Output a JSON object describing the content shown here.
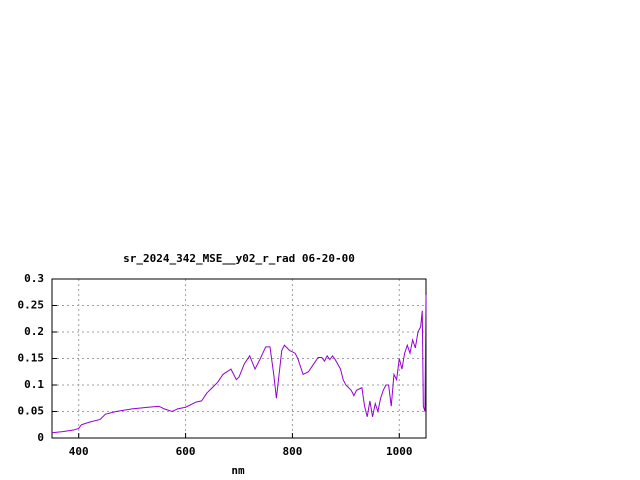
{
  "chart_data": {
    "type": "line",
    "title": "sr_2024_342_MSE__y02_r_rad 06-20-00",
    "x_label": "nm",
    "xlim": [
      350,
      1050
    ],
    "xticks": [
      400,
      600,
      800,
      1000
    ],
    "ylim": [
      0,
      0.3
    ],
    "yticks": [
      0,
      0.05,
      0.1,
      0.15,
      0.2,
      0.25,
      0.3
    ],
    "grid": true,
    "series": [
      {
        "color": "#9400d3",
        "x": [
          350,
          370,
          390,
          400,
          405,
          420,
          440,
          450,
          470,
          500,
          530,
          550,
          560,
          575,
          585,
          600,
          620,
          630,
          640,
          650,
          660,
          670,
          685,
          690,
          695,
          700,
          710,
          720,
          730,
          740,
          750,
          758,
          765,
          770,
          775,
          780,
          785,
          795,
          805,
          810,
          820,
          830,
          840,
          848,
          855,
          860,
          865,
          870,
          875,
          880,
          890,
          895,
          900,
          910,
          915,
          920,
          930,
          935,
          940,
          945,
          950,
          955,
          960,
          965,
          970,
          975,
          980,
          985,
          990,
          995,
          1000,
          1005,
          1010,
          1015,
          1020,
          1025,
          1030,
          1035,
          1040,
          1043,
          1045,
          1048,
          1050
        ],
        "values": [
          0.01,
          0.012,
          0.015,
          0.018,
          0.025,
          0.03,
          0.035,
          0.045,
          0.05,
          0.055,
          0.058,
          0.06,
          0.055,
          0.05,
          0.055,
          0.058,
          0.068,
          0.07,
          0.085,
          0.095,
          0.105,
          0.12,
          0.13,
          0.12,
          0.11,
          0.115,
          0.14,
          0.155,
          0.13,
          0.15,
          0.172,
          0.172,
          0.12,
          0.075,
          0.12,
          0.165,
          0.175,
          0.165,
          0.16,
          0.15,
          0.12,
          0.125,
          0.14,
          0.152,
          0.152,
          0.145,
          0.155,
          0.148,
          0.155,
          0.148,
          0.13,
          0.11,
          0.1,
          0.09,
          0.08,
          0.09,
          0.095,
          0.06,
          0.04,
          0.07,
          0.04,
          0.065,
          0.05,
          0.075,
          0.09,
          0.1,
          0.1,
          0.06,
          0.12,
          0.11,
          0.15,
          0.13,
          0.16,
          0.175,
          0.16,
          0.185,
          0.17,
          0.2,
          0.21,
          0.24,
          0.06,
          0.05,
          0.27
        ]
      }
    ]
  }
}
